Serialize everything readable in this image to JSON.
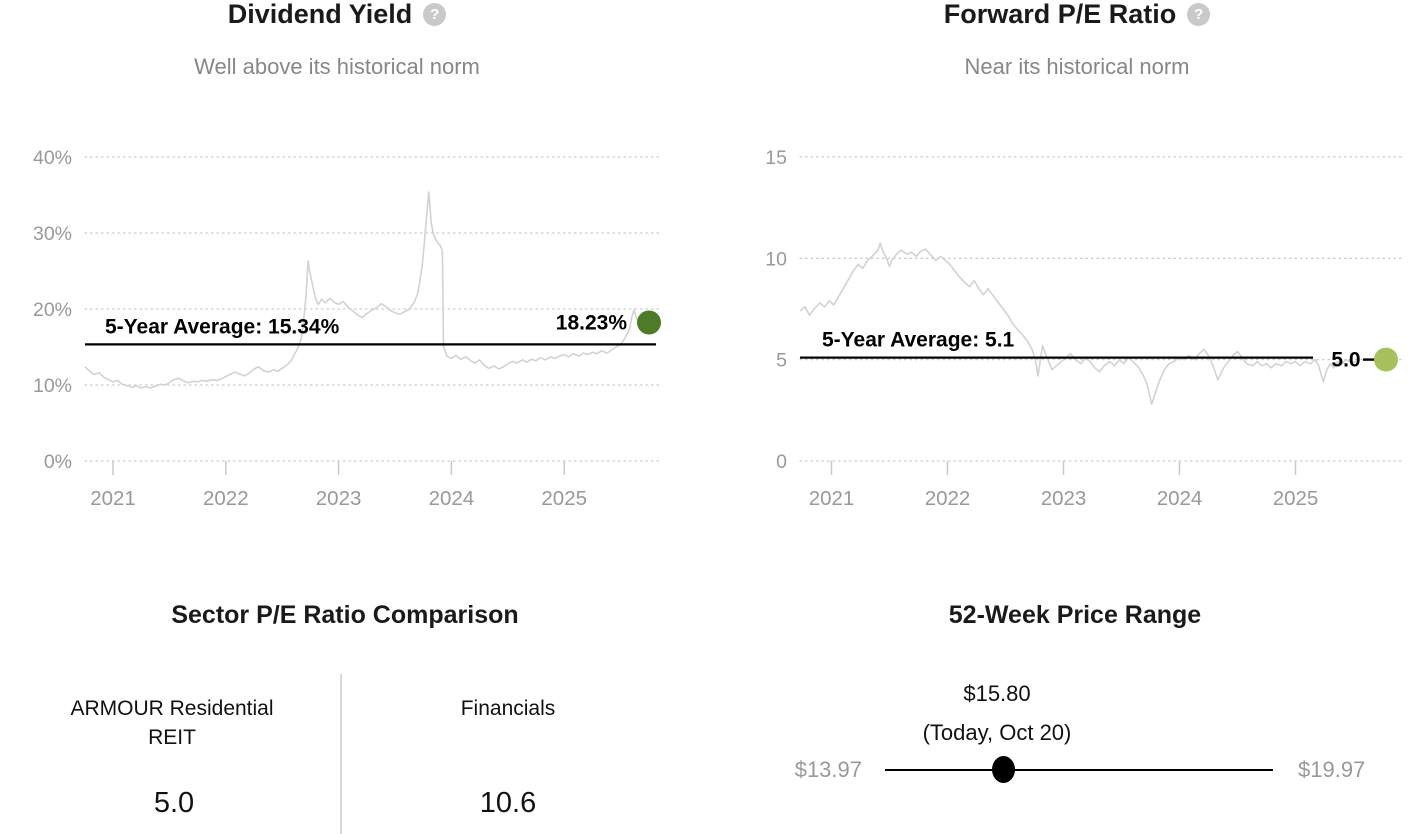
{
  "colors": {
    "series_line": "#d2d2d2",
    "grid": "#cccccc",
    "tick_text": "#999999",
    "annotation": "#000000",
    "title": "#1a1a1a",
    "subtitle": "#878787",
    "divider": "#d9d9d9",
    "slider": "#000000",
    "help_icon_bg": "#c9c9c9",
    "dividend_dot": "#4e7b28",
    "pe_dot": "#a7c15c"
  },
  "icons": {
    "help": "?"
  },
  "chart_data": [
    {
      "type": "line",
      "id": "dividend-yield",
      "title": "Dividend Yield",
      "subtitle": "Well above its historical norm",
      "unit": "%",
      "ylim": [
        0,
        40
      ],
      "xlim": [
        2020.75,
        2025.85
      ],
      "grid": "dotted",
      "legend": "none",
      "y_ticks": [
        {
          "v": 40,
          "label": "40%"
        },
        {
          "v": 30,
          "label": "30%"
        },
        {
          "v": 20,
          "label": "20%"
        },
        {
          "v": 10,
          "label": "10%"
        },
        {
          "v": 0,
          "label": "0%"
        }
      ],
      "x_ticks": [
        {
          "t": 2021,
          "label": "2021"
        },
        {
          "t": 2022,
          "label": "2022"
        },
        {
          "t": 2023,
          "label": "2023"
        },
        {
          "t": 2024,
          "label": "2024"
        },
        {
          "t": 2025,
          "label": "2025"
        }
      ],
      "average": {
        "value": 15.34,
        "label": "5-Year Average: 15.34%"
      },
      "current": {
        "value": 18.23,
        "label": "18.23%"
      },
      "dot_color": "#4e7b28",
      "series": [
        [
          2020.75,
          12.4
        ],
        [
          2020.79,
          11.9
        ],
        [
          2020.83,
          11.4
        ],
        [
          2020.88,
          11.6
        ],
        [
          2020.92,
          11.0
        ],
        [
          2020.96,
          10.7
        ],
        [
          2021.0,
          10.4
        ],
        [
          2021.04,
          10.6
        ],
        [
          2021.08,
          10.1
        ],
        [
          2021.13,
          9.9
        ],
        [
          2021.17,
          9.7
        ],
        [
          2021.21,
          9.9
        ],
        [
          2021.25,
          9.6
        ],
        [
          2021.29,
          9.8
        ],
        [
          2021.33,
          9.6
        ],
        [
          2021.38,
          9.9
        ],
        [
          2021.42,
          10.1
        ],
        [
          2021.46,
          10.0
        ],
        [
          2021.5,
          10.3
        ],
        [
          2021.54,
          10.7
        ],
        [
          2021.58,
          10.9
        ],
        [
          2021.63,
          10.5
        ],
        [
          2021.67,
          10.3
        ],
        [
          2021.71,
          10.5
        ],
        [
          2021.75,
          10.4
        ],
        [
          2021.79,
          10.6
        ],
        [
          2021.83,
          10.5
        ],
        [
          2021.88,
          10.7
        ],
        [
          2021.92,
          10.6
        ],
        [
          2021.96,
          10.8
        ],
        [
          2022.0,
          11.1
        ],
        [
          2022.04,
          11.4
        ],
        [
          2022.08,
          11.7
        ],
        [
          2022.13,
          11.4
        ],
        [
          2022.17,
          11.2
        ],
        [
          2022.21,
          11.6
        ],
        [
          2022.25,
          12.1
        ],
        [
          2022.29,
          12.4
        ],
        [
          2022.33,
          11.9
        ],
        [
          2022.38,
          11.7
        ],
        [
          2022.42,
          12.0
        ],
        [
          2022.46,
          11.8
        ],
        [
          2022.5,
          12.2
        ],
        [
          2022.54,
          12.6
        ],
        [
          2022.58,
          13.2
        ],
        [
          2022.6,
          13.8
        ],
        [
          2022.63,
          14.6
        ],
        [
          2022.65,
          15.3
        ],
        [
          2022.67,
          16.2
        ],
        [
          2022.69,
          18.5
        ],
        [
          2022.71,
          21.5
        ],
        [
          2022.72,
          24.0
        ],
        [
          2022.73,
          26.3
        ],
        [
          2022.74,
          25.2
        ],
        [
          2022.76,
          23.8
        ],
        [
          2022.78,
          22.4
        ],
        [
          2022.8,
          21.2
        ],
        [
          2022.82,
          20.6
        ],
        [
          2022.85,
          21.3
        ],
        [
          2022.88,
          20.8
        ],
        [
          2022.92,
          21.4
        ],
        [
          2022.96,
          20.9
        ],
        [
          2023.0,
          20.6
        ],
        [
          2023.04,
          21.0
        ],
        [
          2023.08,
          20.3
        ],
        [
          2023.13,
          19.7
        ],
        [
          2023.17,
          19.2
        ],
        [
          2023.21,
          18.9
        ],
        [
          2023.25,
          19.4
        ],
        [
          2023.29,
          19.8
        ],
        [
          2023.33,
          20.1
        ],
        [
          2023.38,
          20.7
        ],
        [
          2023.42,
          20.3
        ],
        [
          2023.46,
          19.8
        ],
        [
          2023.5,
          19.5
        ],
        [
          2023.54,
          19.3
        ],
        [
          2023.58,
          19.6
        ],
        [
          2023.63,
          20.0
        ],
        [
          2023.67,
          20.9
        ],
        [
          2023.7,
          22.0
        ],
        [
          2023.72,
          23.6
        ],
        [
          2023.74,
          25.6
        ],
        [
          2023.76,
          28.6
        ],
        [
          2023.78,
          32.2
        ],
        [
          2023.8,
          35.4
        ],
        [
          2023.81,
          33.4
        ],
        [
          2023.82,
          31.4
        ],
        [
          2023.84,
          29.9
        ],
        [
          2023.86,
          29.2
        ],
        [
          2023.88,
          28.7
        ],
        [
          2023.9,
          28.4
        ],
        [
          2023.92,
          27.6
        ],
        [
          2023.93,
          15.1
        ],
        [
          2023.96,
          13.8
        ],
        [
          2024.0,
          13.5
        ],
        [
          2024.04,
          13.9
        ],
        [
          2024.08,
          13.4
        ],
        [
          2024.13,
          13.7
        ],
        [
          2024.17,
          13.2
        ],
        [
          2024.21,
          12.9
        ],
        [
          2024.25,
          13.3
        ],
        [
          2024.29,
          12.6
        ],
        [
          2024.33,
          12.2
        ],
        [
          2024.38,
          12.5
        ],
        [
          2024.42,
          12.1
        ],
        [
          2024.46,
          12.4
        ],
        [
          2024.5,
          12.8
        ],
        [
          2024.54,
          13.1
        ],
        [
          2024.58,
          12.9
        ],
        [
          2024.63,
          13.3
        ],
        [
          2024.67,
          13.0
        ],
        [
          2024.71,
          13.4
        ],
        [
          2024.75,
          13.2
        ],
        [
          2024.79,
          13.6
        ],
        [
          2024.83,
          13.3
        ],
        [
          2024.88,
          13.7
        ],
        [
          2024.92,
          13.5
        ],
        [
          2024.96,
          13.8
        ],
        [
          2025.0,
          14.0
        ],
        [
          2025.04,
          13.7
        ],
        [
          2025.08,
          14.1
        ],
        [
          2025.13,
          13.8
        ],
        [
          2025.17,
          14.2
        ],
        [
          2025.21,
          14.0
        ],
        [
          2025.25,
          14.3
        ],
        [
          2025.29,
          14.1
        ],
        [
          2025.33,
          14.5
        ],
        [
          2025.38,
          14.2
        ],
        [
          2025.42,
          14.6
        ],
        [
          2025.46,
          15.0
        ],
        [
          2025.5,
          15.3
        ],
        [
          2025.54,
          16.2
        ],
        [
          2025.58,
          17.4
        ],
        [
          2025.6,
          19.0
        ],
        [
          2025.62,
          19.9
        ],
        [
          2025.64,
          18.8
        ],
        [
          2025.67,
          18.2
        ],
        [
          2025.7,
          18.6
        ],
        [
          2025.72,
          17.9
        ],
        [
          2025.74,
          18.4
        ],
        [
          2025.76,
          18.1
        ],
        [
          2025.79,
          18.23
        ]
      ]
    },
    {
      "type": "line",
      "id": "forward-pe",
      "title": "Forward P/E Ratio",
      "subtitle": "Near its historical norm",
      "unit": "",
      "ylim": [
        0,
        15
      ],
      "xlim": [
        2020.73,
        2025.85
      ],
      "grid": "dotted",
      "legend": "none",
      "y_ticks": [
        {
          "v": 15,
          "label": "15"
        },
        {
          "v": 10,
          "label": "10"
        },
        {
          "v": 5,
          "label": "5"
        },
        {
          "v": 0,
          "label": "0"
        }
      ],
      "x_ticks": [
        {
          "t": 2021,
          "label": "2021"
        },
        {
          "t": 2022,
          "label": "2022"
        },
        {
          "t": 2023,
          "label": "2023"
        },
        {
          "t": 2024,
          "label": "2024"
        },
        {
          "t": 2025,
          "label": "2025"
        }
      ],
      "average": {
        "value": 5.1,
        "label": "5-Year Average: 5.1"
      },
      "current": {
        "value": 5.0,
        "label": "5.0"
      },
      "dot_color": "#a7c15c",
      "series": [
        [
          2020.73,
          7.4
        ],
        [
          2020.77,
          7.6
        ],
        [
          2020.81,
          7.2
        ],
        [
          2020.85,
          7.5
        ],
        [
          2020.9,
          7.8
        ],
        [
          2020.94,
          7.6
        ],
        [
          2020.98,
          7.9
        ],
        [
          2021.02,
          7.7
        ],
        [
          2021.06,
          8.1
        ],
        [
          2021.1,
          8.5
        ],
        [
          2021.15,
          9.0
        ],
        [
          2021.19,
          9.4
        ],
        [
          2021.23,
          9.7
        ],
        [
          2021.27,
          9.5
        ],
        [
          2021.31,
          9.9
        ],
        [
          2021.35,
          10.1
        ],
        [
          2021.4,
          10.4
        ],
        [
          2021.42,
          10.75
        ],
        [
          2021.44,
          10.4
        ],
        [
          2021.48,
          9.9
        ],
        [
          2021.5,
          9.6
        ],
        [
          2021.52,
          9.9
        ],
        [
          2021.56,
          10.2
        ],
        [
          2021.6,
          10.4
        ],
        [
          2021.65,
          10.2
        ],
        [
          2021.69,
          10.3
        ],
        [
          2021.73,
          10.1
        ],
        [
          2021.77,
          10.35
        ],
        [
          2021.81,
          10.45
        ],
        [
          2021.85,
          10.2
        ],
        [
          2021.9,
          9.9
        ],
        [
          2021.94,
          10.1
        ],
        [
          2021.98,
          9.9
        ],
        [
          2022.02,
          9.7
        ],
        [
          2022.06,
          9.4
        ],
        [
          2022.1,
          9.1
        ],
        [
          2022.15,
          8.8
        ],
        [
          2022.19,
          8.6
        ],
        [
          2022.23,
          8.9
        ],
        [
          2022.27,
          8.5
        ],
        [
          2022.31,
          8.2
        ],
        [
          2022.35,
          8.5
        ],
        [
          2022.4,
          8.1
        ],
        [
          2022.44,
          7.8
        ],
        [
          2022.48,
          7.5
        ],
        [
          2022.52,
          7.2
        ],
        [
          2022.56,
          6.8
        ],
        [
          2022.6,
          6.5
        ],
        [
          2022.65,
          6.2
        ],
        [
          2022.69,
          5.9
        ],
        [
          2022.73,
          5.5
        ],
        [
          2022.76,
          4.9
        ],
        [
          2022.78,
          4.2
        ],
        [
          2022.8,
          5.0
        ],
        [
          2022.82,
          5.7
        ],
        [
          2022.85,
          5.2
        ],
        [
          2022.88,
          4.8
        ],
        [
          2022.9,
          4.5
        ],
        [
          2022.94,
          4.7
        ],
        [
          2022.98,
          4.9
        ],
        [
          2023.02,
          5.1
        ],
        [
          2023.06,
          5.3
        ],
        [
          2023.1,
          5.0
        ],
        [
          2023.15,
          4.8
        ],
        [
          2023.19,
          5.1
        ],
        [
          2023.23,
          4.9
        ],
        [
          2023.27,
          4.6
        ],
        [
          2023.31,
          4.4
        ],
        [
          2023.35,
          4.7
        ],
        [
          2023.4,
          4.9
        ],
        [
          2023.44,
          4.7
        ],
        [
          2023.48,
          5.0
        ],
        [
          2023.52,
          4.8
        ],
        [
          2023.56,
          5.1
        ],
        [
          2023.6,
          4.9
        ],
        [
          2023.65,
          4.6
        ],
        [
          2023.69,
          4.2
        ],
        [
          2023.72,
          3.8
        ],
        [
          2023.76,
          2.8
        ],
        [
          2023.8,
          3.5
        ],
        [
          2023.83,
          4.0
        ],
        [
          2023.87,
          4.5
        ],
        [
          2023.91,
          4.8
        ],
        [
          2023.95,
          4.9
        ],
        [
          2024.0,
          5.1
        ],
        [
          2024.04,
          5.0
        ],
        [
          2024.08,
          5.2
        ],
        [
          2024.13,
          5.0
        ],
        [
          2024.17,
          5.3
        ],
        [
          2024.21,
          5.5
        ],
        [
          2024.25,
          5.2
        ],
        [
          2024.29,
          4.7
        ],
        [
          2024.33,
          4.0
        ],
        [
          2024.38,
          4.6
        ],
        [
          2024.42,
          4.9
        ],
        [
          2024.46,
          5.2
        ],
        [
          2024.5,
          5.4
        ],
        [
          2024.54,
          5.1
        ],
        [
          2024.58,
          4.8
        ],
        [
          2024.63,
          4.7
        ],
        [
          2024.67,
          4.9
        ],
        [
          2024.71,
          4.7
        ],
        [
          2024.75,
          4.8
        ],
        [
          2024.79,
          4.6
        ],
        [
          2024.83,
          4.8
        ],
        [
          2024.88,
          4.7
        ],
        [
          2024.92,
          4.9
        ],
        [
          2024.96,
          4.8
        ],
        [
          2025.0,
          4.9
        ],
        [
          2025.04,
          4.7
        ],
        [
          2025.08,
          4.9
        ],
        [
          2025.13,
          4.8
        ],
        [
          2025.17,
          5.0
        ],
        [
          2025.2,
          4.7
        ],
        [
          2025.22,
          4.3
        ],
        [
          2025.24,
          3.9
        ],
        [
          2025.27,
          4.5
        ],
        [
          2025.3,
          4.8
        ],
        [
          2025.33,
          4.6
        ],
        [
          2025.36,
          4.9
        ],
        [
          2025.4,
          4.8
        ],
        [
          2025.44,
          5.0
        ],
        [
          2025.48,
          4.85
        ],
        [
          2025.52,
          4.9
        ]
      ]
    },
    {
      "type": "table",
      "id": "sector-pe-comparison",
      "title": "Sector P/E Ratio Comparison",
      "columns": [
        {
          "name": "ARMOUR Residential REIT",
          "value": "5.0"
        },
        {
          "name": "Financials",
          "value": "10.6"
        }
      ]
    }
  ],
  "price_range": {
    "title": "52-Week Price Range",
    "current_label": "$15.80",
    "current_note": "(Today, Oct 20)",
    "low_label": "$13.97",
    "high_label": "$19.97",
    "low": 13.97,
    "high": 19.97,
    "current": 15.8
  }
}
